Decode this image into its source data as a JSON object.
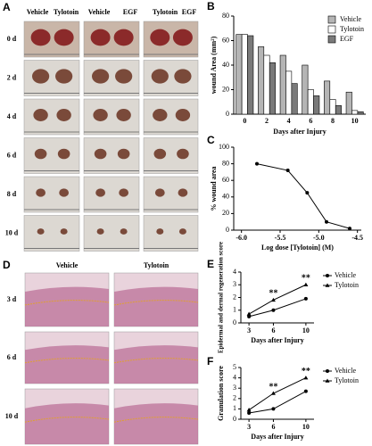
{
  "panels": {
    "A": {
      "label": "A",
      "columns": [
        "Vehicle",
        "Tylotoin",
        "Vehicle",
        "EGF",
        "Tylotoin",
        "EGF"
      ],
      "rows": [
        "0 d",
        "2 d",
        "4 d",
        "6 d",
        "8 d",
        "10 d"
      ]
    },
    "D": {
      "label": "D",
      "columns": [
        "Vehicle",
        "Tylotoin"
      ],
      "rows": [
        "3 d",
        "6 d",
        "10 d"
      ]
    }
  },
  "chart_data": [
    {
      "type": "bar",
      "label": "B",
      "ylabel": "wound Area (mm²)",
      "xlabel": "Days after Injury",
      "categories": [
        0,
        2,
        4,
        6,
        8,
        10
      ],
      "ylim": [
        0,
        80
      ],
      "yticks": [
        0,
        20,
        40,
        60,
        80
      ],
      "legend": "upper right",
      "series": [
        {
          "name": "Vehicle",
          "color": "#b5b5b5",
          "values": [
            65,
            55,
            48,
            40,
            27,
            18
          ]
        },
        {
          "name": "Tylotoin",
          "color": "#ffffff",
          "values": [
            65,
            48,
            35,
            20,
            12,
            3
          ]
        },
        {
          "name": "EGF",
          "color": "#7a7a7a",
          "values": [
            64,
            42,
            25,
            15,
            7,
            2
          ]
        }
      ]
    },
    {
      "type": "line",
      "label": "C",
      "ylabel": "% wound area",
      "xlabel": "Log dose [Tylotoin] (M)",
      "xlim": [
        -6.1,
        -4.45
      ],
      "xticks": [
        {
          "value": -6,
          "label": "-6.0"
        },
        -5.5,
        {
          "value": -5,
          "label": "-5.0"
        },
        -4.5
      ],
      "ylim": [
        0,
        100
      ],
      "yticks": [
        0,
        20,
        40,
        60,
        80,
        100
      ],
      "legend": "none",
      "x": [
        -5.8,
        -5.4,
        -5.15,
        -4.9,
        -4.6
      ],
      "series": [
        {
          "name": "Tylotoin",
          "color": "#000000",
          "values": [
            80,
            72,
            45,
            10,
            2
          ]
        }
      ]
    },
    {
      "type": "line",
      "label": "E",
      "ylabel": "Epidermal and dermal regeneration score",
      "xlabel": "Days after Injury",
      "xlim": [
        2,
        11
      ],
      "xticks": [
        3,
        6,
        10
      ],
      "ylim": [
        0,
        4
      ],
      "yticks": [
        0,
        1,
        2,
        3,
        4
      ],
      "legend": "outside right",
      "x": [
        3,
        6,
        10
      ],
      "series": [
        {
          "name": "Vehicle",
          "color": "#000000",
          "values": [
            0.5,
            1.0,
            1.9
          ]
        },
        {
          "name": "Tylotoin",
          "color": "#000000",
          "values": [
            0.7,
            1.8,
            3.0
          ]
        }
      ],
      "annotations": [
        {
          "text": "**",
          "x": 6
        },
        {
          "text": "**",
          "x": 10
        }
      ]
    },
    {
      "type": "line",
      "label": "F",
      "ylabel": "Granulation score",
      "xlabel": "Days after Injury",
      "xlim": [
        2,
        11
      ],
      "xticks": [
        3,
        6,
        10
      ],
      "ylim": [
        0,
        5
      ],
      "yticks": [
        0,
        1,
        2,
        3,
        4,
        5
      ],
      "legend": "outside right",
      "x": [
        3,
        6,
        10
      ],
      "series": [
        {
          "name": "Vehicle",
          "color": "#000000",
          "values": [
            0.6,
            1.0,
            2.7
          ]
        },
        {
          "name": "Tylotoin",
          "color": "#000000",
          "values": [
            0.9,
            2.5,
            4.0
          ]
        }
      ],
      "annotations": [
        {
          "text": "**",
          "x": 6
        },
        {
          "text": "**",
          "x": 10
        }
      ]
    }
  ]
}
